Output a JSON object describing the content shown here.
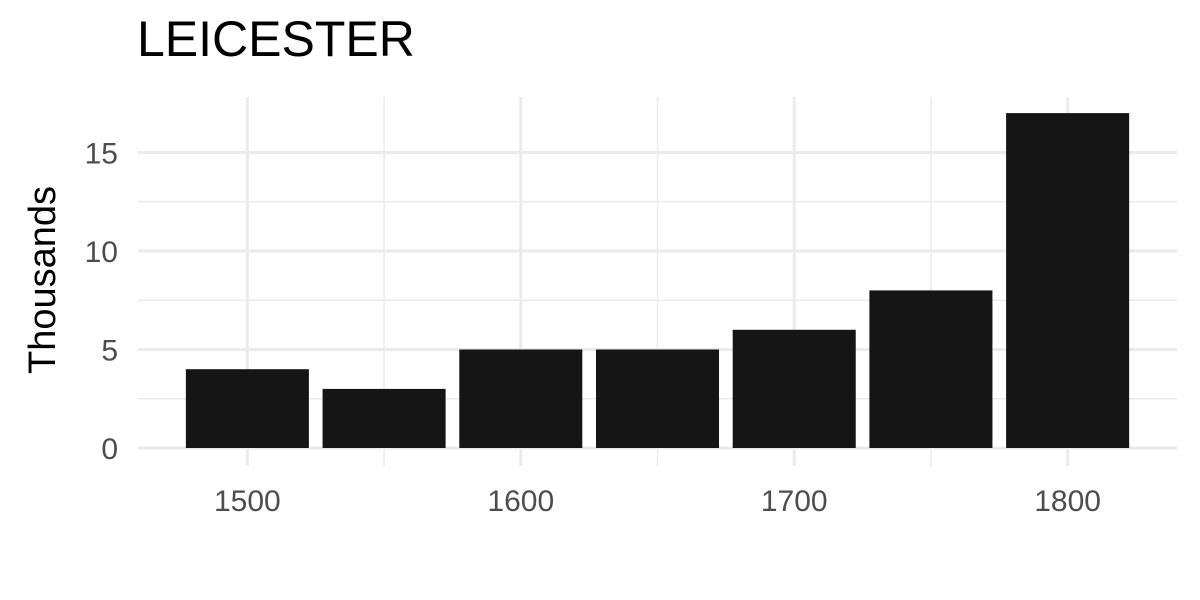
{
  "chart_data": {
    "type": "bar",
    "title": "LEICESTER",
    "xlabel": "",
    "ylabel": "Thousands",
    "x": [
      1500,
      1550,
      1600,
      1650,
      1700,
      1750,
      1800
    ],
    "values": [
      4,
      3,
      5,
      5,
      6,
      8,
      17
    ],
    "xlim": [
      1460,
      1840
    ],
    "ylim": [
      0,
      17.5
    ],
    "x_ticks": [
      1500,
      1600,
      1700,
      1800
    ],
    "x_tick_labels": [
      "1500",
      "1600",
      "1700",
      "1800"
    ],
    "y_ticks": [
      0,
      5,
      10,
      15
    ],
    "y_tick_labels": [
      "0",
      "5",
      "10",
      "15"
    ],
    "bar_color": "#151515",
    "grid": true,
    "grid_color": "#ebebeb",
    "legend": "none"
  }
}
